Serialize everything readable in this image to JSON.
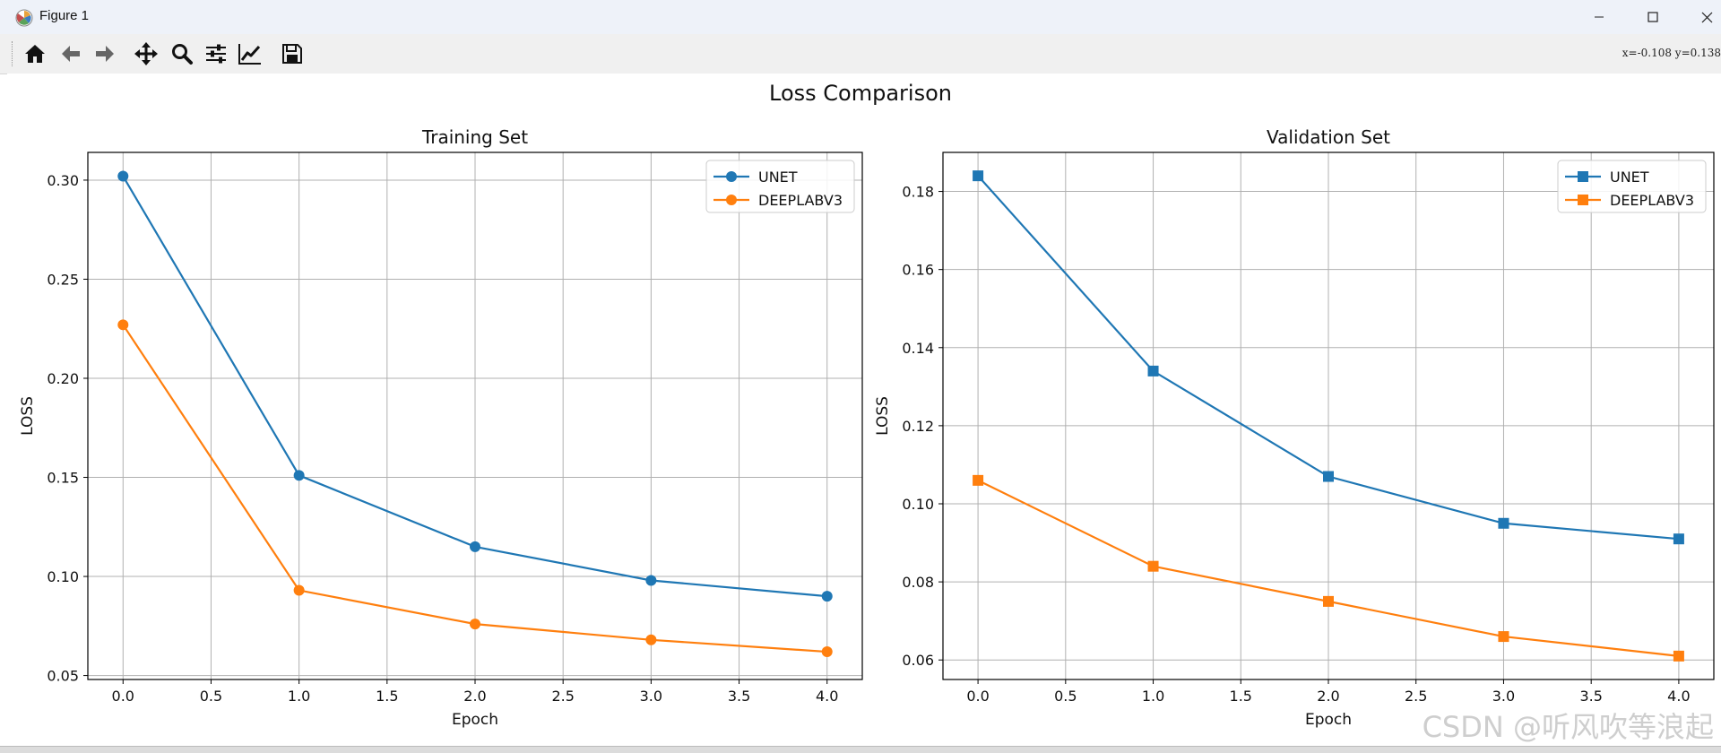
{
  "window": {
    "title": "Figure 1"
  },
  "toolbar": {
    "buttons": [
      "home",
      "back",
      "forward",
      "pan",
      "zoom",
      "configure-subplots",
      "edit-axis",
      "save"
    ],
    "coords": "x=-0.108  y=0.138"
  },
  "watermark": "CSDN @听风吹等浪起",
  "colors": {
    "unet": "#1f77b4",
    "deeplab": "#ff7f0e",
    "grid": "#b0b0b0"
  },
  "chart_data": [
    {
      "type": "line",
      "suptitle": "Loss Comparison",
      "title": "Training Set",
      "xlabel": "Epoch",
      "ylabel": "LOSS",
      "xlim": [
        -0.2,
        4.2
      ],
      "ylim": [
        0.048,
        0.314
      ],
      "xticks": [
        0.0,
        0.5,
        1.0,
        1.5,
        2.0,
        2.5,
        3.0,
        3.5,
        4.0
      ],
      "xtick_labels": [
        "0.0",
        "0.5",
        "1.0",
        "1.5",
        "2.0",
        "2.5",
        "3.0",
        "3.5",
        "4.0"
      ],
      "yticks": [
        0.05,
        0.1,
        0.15,
        0.2,
        0.25,
        0.3
      ],
      "ytick_labels": [
        "0.05",
        "0.10",
        "0.15",
        "0.20",
        "0.25",
        "0.30"
      ],
      "grid": true,
      "legend": "top-right",
      "x": [
        0,
        1,
        2,
        3,
        4
      ],
      "series": [
        {
          "name": "UNET",
          "marker": "circle",
          "values": [
            0.302,
            0.151,
            0.115,
            0.098,
            0.09
          ]
        },
        {
          "name": "DEEPLABV3",
          "marker": "circle",
          "values": [
            0.227,
            0.093,
            0.076,
            0.068,
            0.062
          ]
        }
      ]
    },
    {
      "type": "line",
      "title": "Validation Set",
      "xlabel": "Epoch",
      "ylabel": "LOSS",
      "xlim": [
        -0.2,
        4.2
      ],
      "ylim": [
        0.055,
        0.19
      ],
      "xticks": [
        0.0,
        0.5,
        1.0,
        1.5,
        2.0,
        2.5,
        3.0,
        3.5,
        4.0
      ],
      "xtick_labels": [
        "0.0",
        "0.5",
        "1.0",
        "1.5",
        "2.0",
        "2.5",
        "3.0",
        "3.5",
        "4.0"
      ],
      "yticks": [
        0.06,
        0.08,
        0.1,
        0.12,
        0.14,
        0.16,
        0.18
      ],
      "ytick_labels": [
        "0.06",
        "0.08",
        "0.10",
        "0.12",
        "0.14",
        "0.16",
        "0.18"
      ],
      "grid": true,
      "legend": "top-right",
      "x": [
        0,
        1,
        2,
        3,
        4
      ],
      "series": [
        {
          "name": "UNET",
          "marker": "square",
          "values": [
            0.184,
            0.134,
            0.107,
            0.095,
            0.091
          ]
        },
        {
          "name": "DEEPLABV3",
          "marker": "square",
          "values": [
            0.106,
            0.084,
            0.075,
            0.066,
            0.061
          ]
        }
      ]
    }
  ]
}
